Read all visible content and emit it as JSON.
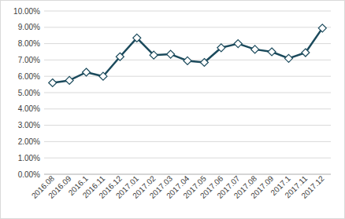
{
  "chart_data": {
    "type": "line",
    "categories": [
      "2016.08",
      "2016.09",
      "2016.1",
      "2016.11",
      "2016.12",
      "2017.01",
      "2017.02",
      "2017.03",
      "2017.04",
      "2017.05",
      "2017.06",
      "2017.07",
      "2017.08",
      "2017.09",
      "2017.1",
      "2017.11",
      "2017.12"
    ],
    "values": [
      5.6,
      5.75,
      6.25,
      6.0,
      7.2,
      8.35,
      7.3,
      7.35,
      6.95,
      6.85,
      7.75,
      8.0,
      7.65,
      7.5,
      7.1,
      7.45,
      8.95
    ],
    "color": "#1b4a5c",
    "marker": "diamond",
    "ylim": [
      0,
      10
    ],
    "yticks": [
      {
        "value": 0,
        "label": "0.00%"
      },
      {
        "value": 1,
        "label": "1.00%"
      },
      {
        "value": 2,
        "label": "2.00%"
      },
      {
        "value": 3,
        "label": "3.00%"
      },
      {
        "value": 4,
        "label": "4.00%"
      },
      {
        "value": 5,
        "label": "5.00%"
      },
      {
        "value": 6,
        "label": "6.00%"
      },
      {
        "value": 7,
        "label": "7.00%"
      },
      {
        "value": 8,
        "label": "8.00%"
      },
      {
        "value": 9,
        "label": "9.00%"
      },
      {
        "value": 10,
        "label": "10.00%"
      }
    ],
    "grid": true
  }
}
